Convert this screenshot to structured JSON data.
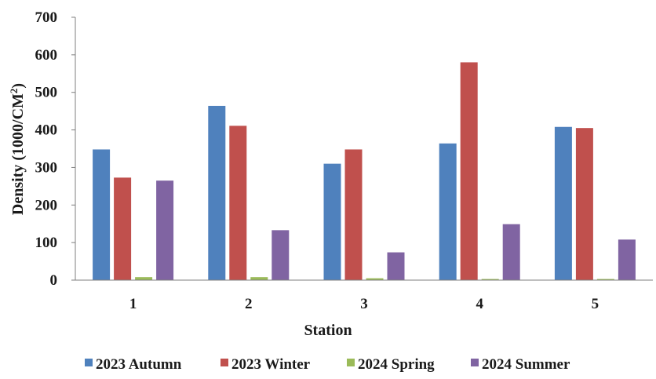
{
  "chart_data": {
    "type": "bar",
    "title": "",
    "xlabel": "Station",
    "ylabel_main": "Density (1000/CM",
    "ylabel_sup": "2",
    "ylabel_tail": ")",
    "categories": [
      "1",
      "2",
      "3",
      "4",
      "5"
    ],
    "series": [
      {
        "name": "2023 Autumn",
        "color": "#4f81bd",
        "values": [
          348,
          464,
          310,
          364,
          408
        ]
      },
      {
        "name": "2023 Winter",
        "color": "#c0504d",
        "values": [
          273,
          411,
          348,
          580,
          405
        ]
      },
      {
        "name": "2024 Spring",
        "color": "#9bbb59",
        "values": [
          8,
          8,
          5,
          3,
          3
        ]
      },
      {
        "name": "2024 Summer",
        "color": "#8064a2",
        "values": [
          265,
          133,
          74,
          149,
          108
        ]
      }
    ],
    "ylim": [
      0,
      700
    ],
    "yticks": [
      0,
      100,
      200,
      300,
      400,
      500,
      600,
      700
    ],
    "grid": false,
    "legend_position": "bottom"
  }
}
